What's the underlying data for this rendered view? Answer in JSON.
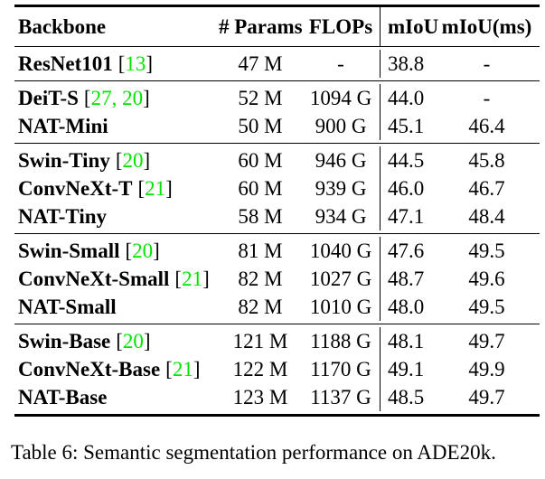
{
  "table": {
    "header": {
      "backbone": "Backbone",
      "params": "# Params",
      "flops": "FLOPs",
      "miou": "mIoU",
      "miou_ms": "mIoU(ms)"
    },
    "groups": [
      {
        "rows": [
          {
            "name": "ResNet101",
            "cite_open": "[",
            "cite": "13",
            "cite_close": "]",
            "params": "47 M",
            "flops": "-",
            "miou": "38.8",
            "miou_ms": "-"
          }
        ]
      },
      {
        "rows": [
          {
            "name": "DeiT-S",
            "cite_open": "[",
            "cite": "27, 20",
            "cite_close": "]",
            "params": "52 M",
            "flops": "1094 G",
            "miou": "44.0",
            "miou_ms": "-"
          },
          {
            "name": "NAT-Mini",
            "params": "50 M",
            "flops": "900 G",
            "miou": "45.1",
            "miou_ms": "46.4"
          }
        ]
      },
      {
        "rows": [
          {
            "name": "Swin-Tiny",
            "cite_open": "[",
            "cite": "20",
            "cite_close": "]",
            "params": "60 M",
            "flops": "946 G",
            "miou": "44.5",
            "miou_ms": "45.8"
          },
          {
            "name": "ConvNeXt-T",
            "cite_open": "[",
            "cite": "21",
            "cite_close": "]",
            "params": "60 M",
            "flops": "939 G",
            "miou": "46.0",
            "miou_ms": "46.7"
          },
          {
            "name": "NAT-Tiny",
            "params": "58 M",
            "flops": "934 G",
            "miou": "47.1",
            "miou_ms": "48.4"
          }
        ]
      },
      {
        "rows": [
          {
            "name": "Swin-Small",
            "cite_open": "[",
            "cite": "20",
            "cite_close": "]",
            "params": "81 M",
            "flops": "1040 G",
            "miou": "47.6",
            "miou_ms": "49.5"
          },
          {
            "name": "ConvNeXt-Small",
            "cite_open": "[",
            "cite": "21",
            "cite_close": "]",
            "params": "82 M",
            "flops": "1027 G",
            "miou": "48.7",
            "miou_ms": "49.6"
          },
          {
            "name": "NAT-Small",
            "params": "82 M",
            "flops": "1010 G",
            "miou": "48.0",
            "miou_ms": "49.5"
          }
        ]
      },
      {
        "rows": [
          {
            "name": "Swin-Base",
            "cite_open": "[",
            "cite": "20",
            "cite_close": "]",
            "params": "121 M",
            "flops": "1188 G",
            "miou": "48.1",
            "miou_ms": "49.7"
          },
          {
            "name": "ConvNeXt-Base",
            "cite_open": "[",
            "cite": "21",
            "cite_close": "]",
            "params": "122 M",
            "flops": "1170 G",
            "miou": "49.1",
            "miou_ms": "49.9"
          },
          {
            "name": "NAT-Base",
            "params": "123 M",
            "flops": "1137 G",
            "miou": "48.5",
            "miou_ms": "49.7"
          }
        ]
      }
    ]
  },
  "caption": "Table 6: Semantic segmentation performance on ADE20k.",
  "colors": {
    "citation_green": "#00e400",
    "text": "#000000",
    "rule": "#000000",
    "background": "#ffffff"
  }
}
